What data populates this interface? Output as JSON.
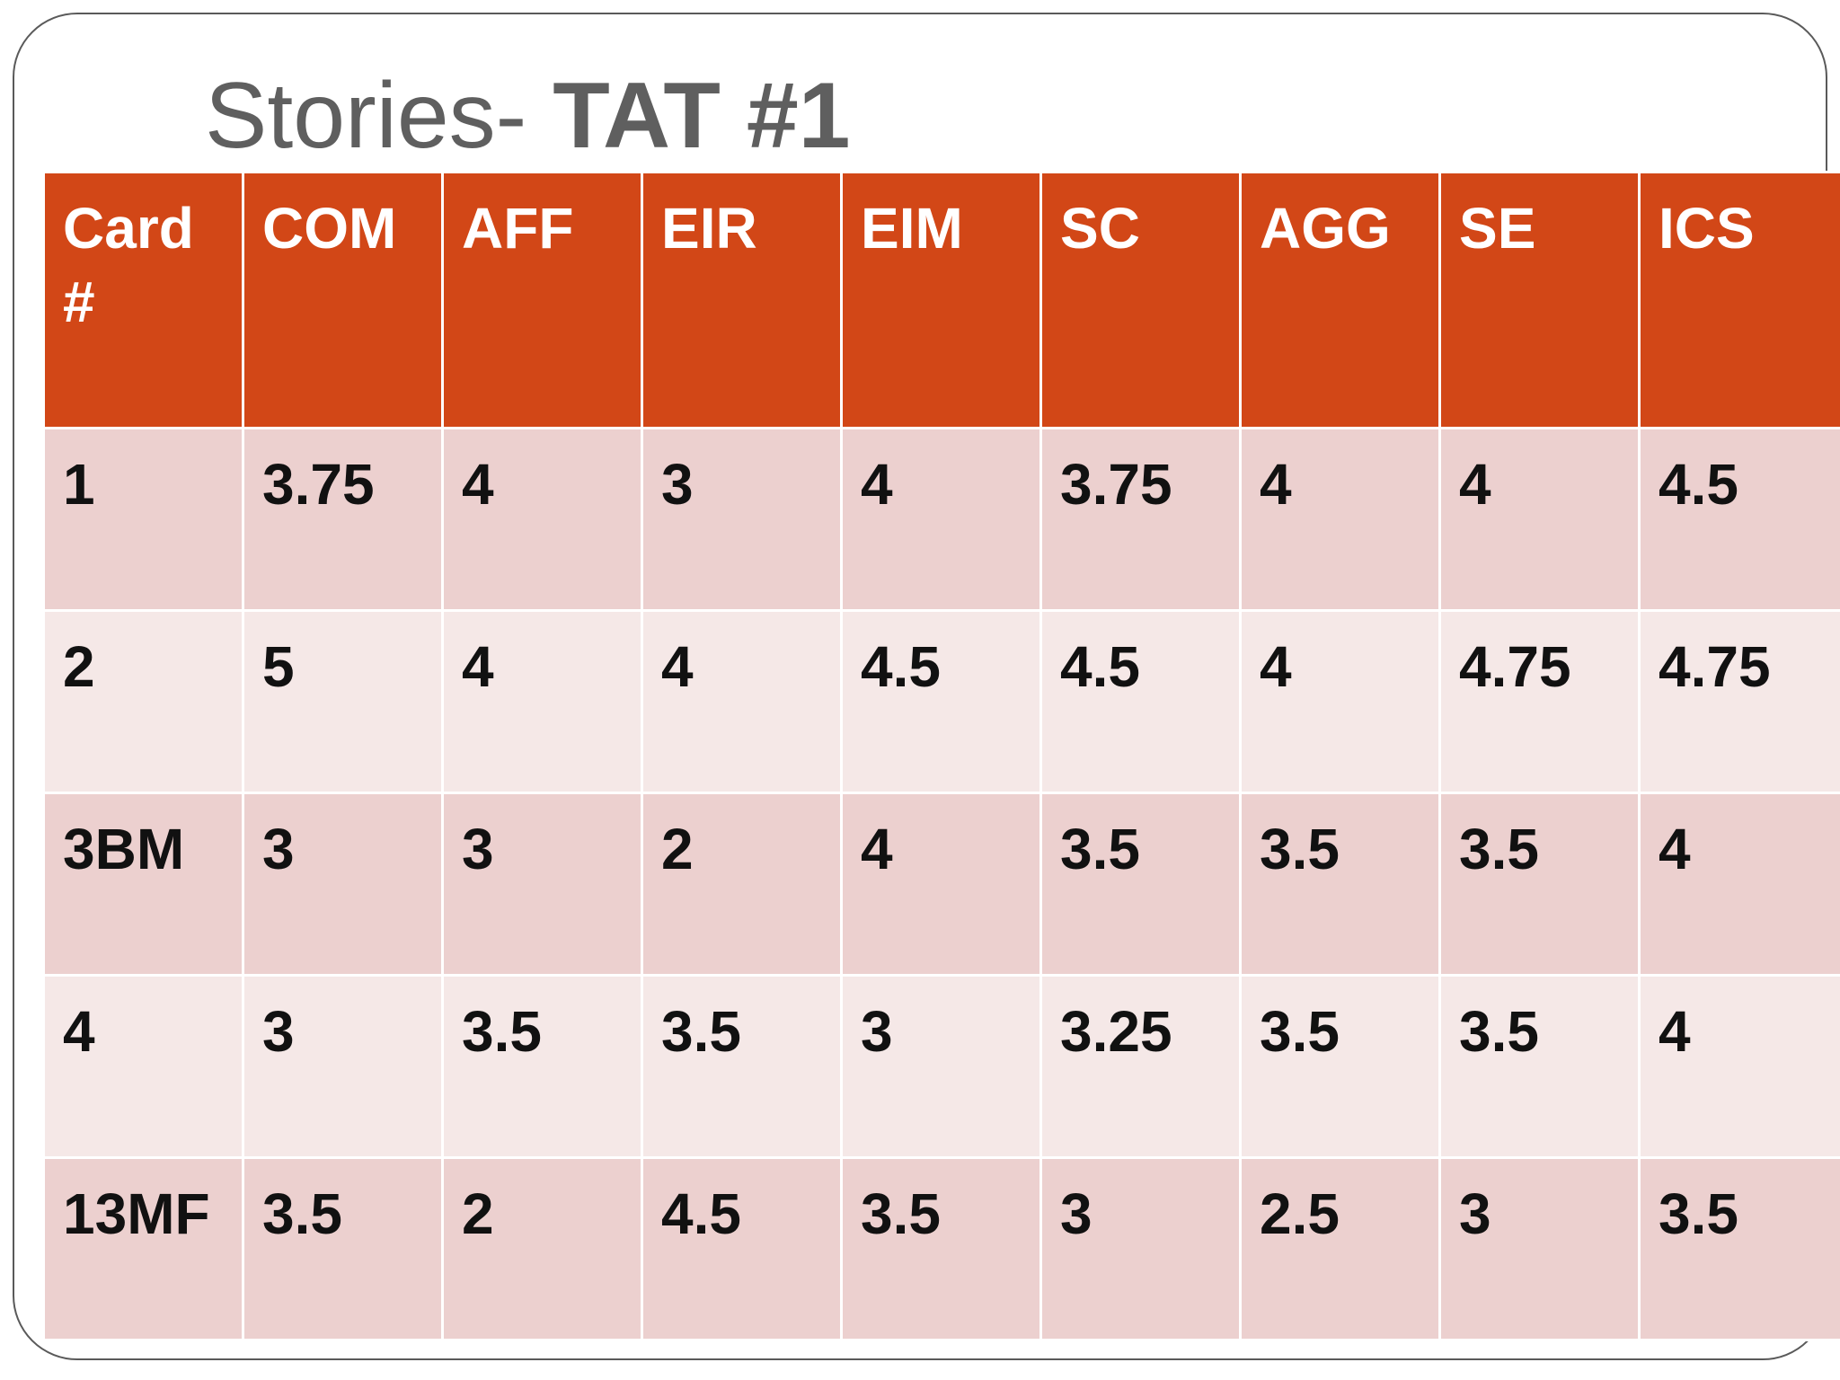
{
  "slide": {
    "title_prefix": "Stories- ",
    "title_bold": "TAT #1"
  },
  "table": {
    "headers": [
      "Card #",
      "COM",
      "AFF",
      "EIR",
      "EIM",
      "SC",
      "AGG",
      "SE",
      "ICS"
    ],
    "rows": [
      [
        "1",
        "3.75",
        "4",
        "3",
        "4",
        "3.75",
        "4",
        "4",
        "4.5"
      ],
      [
        "2",
        "5",
        "4",
        "4",
        "4.5",
        "4.5",
        "4",
        "4.75",
        "4.75"
      ],
      [
        "3BM",
        "3",
        "3",
        "2",
        "4",
        "3.5",
        "3.5",
        "3.5",
        "4"
      ],
      [
        "4",
        "3",
        "3.5",
        "3.5",
        "3",
        "3.25",
        "3.5",
        "3.5",
        "4"
      ],
      [
        "13MF",
        "3.5",
        "2",
        "4.5",
        "3.5",
        "3",
        "2.5",
        "3",
        "3.5"
      ]
    ]
  },
  "colors": {
    "header_bg": "#d24717",
    "row_odd_bg": "#ecd0cf",
    "row_even_bg": "#f5e8e7",
    "title_color": "#5f5f5f"
  }
}
